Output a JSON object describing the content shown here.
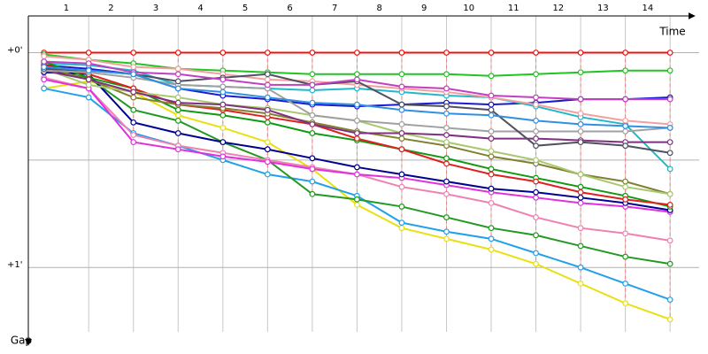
{
  "chart_data": {
    "type": "line",
    "x_label": "Time",
    "y_label": "Gap",
    "x": [
      0,
      1,
      2,
      3,
      4,
      5,
      6,
      7,
      8,
      9,
      10,
      11,
      12,
      13,
      14
    ],
    "xlim": [
      -0.35,
      14.65
    ],
    "xticks": [
      1,
      2,
      3,
      4,
      5,
      6,
      7,
      8,
      9,
      10,
      11,
      12,
      13,
      14
    ],
    "ylim": [
      -11,
      78
    ],
    "yticks": [
      {
        "value": 0,
        "label": "+0'"
      },
      {
        "value": 30,
        "label": null
      },
      {
        "value": 60,
        "label": "+1'"
      }
    ],
    "invert_y": true,
    "grid": true,
    "series": [
      {
        "color": "#ee1111",
        "values": [
          0,
          0,
          0,
          0,
          0,
          0,
          0,
          0,
          0,
          0,
          0,
          0,
          0,
          0,
          0
        ]
      },
      {
        "color": "#22c322",
        "values": [
          0.5,
          2,
          3,
          4.5,
          5,
          5.5,
          6,
          6,
          6,
          6,
          6.5,
          6,
          5.5,
          5,
          5
        ]
      },
      {
        "color": "#1a1ad0",
        "values": [
          3.5,
          4.5,
          6,
          10,
          12,
          13,
          14.5,
          15,
          14.5,
          14,
          14.5,
          14,
          13,
          13,
          12.5
        ]
      },
      {
        "color": "#22b8c8",
        "values": [
          3,
          3.5,
          5,
          9,
          9.5,
          10,
          10.5,
          10,
          11,
          12,
          12.5,
          15,
          18,
          20,
          32.5
        ]
      },
      {
        "color": "#e8e010",
        "values": [
          10,
          8,
          11,
          17.5,
          21,
          25,
          32.5,
          42.5,
          49,
          52,
          55,
          59,
          64.5,
          70,
          74.5
        ]
      },
      {
        "color": "#22a0e8",
        "values": [
          10,
          12.5,
          22.5,
          26,
          30,
          34,
          36,
          40,
          47.5,
          50,
          52,
          56,
          60,
          64.5,
          69
        ]
      },
      {
        "color": "#229922",
        "values": [
          5,
          7,
          16,
          19,
          25,
          30,
          39.5,
          41,
          43,
          46,
          49,
          51,
          54,
          57,
          59
        ]
      },
      {
        "color": "#f080b0",
        "values": [
          7,
          10,
          23,
          26,
          28,
          30,
          32,
          34,
          37.5,
          39.5,
          42,
          46,
          49,
          50.5,
          52.5
        ]
      },
      {
        "color": "#e030e0",
        "values": [
          7.5,
          10,
          25,
          27,
          29,
          30.5,
          32.5,
          34,
          35,
          37,
          39,
          40.5,
          42,
          43,
          44.5
        ]
      },
      {
        "color": "#000090",
        "values": [
          5.5,
          6,
          19.5,
          22.5,
          25,
          27,
          29.5,
          32,
          34,
          36,
          38,
          39,
          40.5,
          42,
          44
        ]
      },
      {
        "color": "#119911",
        "values": [
          2.5,
          7,
          10,
          16,
          17.5,
          19.5,
          22.5,
          24.5,
          27,
          29.5,
          32.5,
          35,
          37.5,
          40,
          43
        ]
      },
      {
        "color": "#e02020",
        "values": [
          3.5,
          6,
          10,
          14.5,
          16,
          18,
          20,
          24,
          27,
          31,
          34,
          36,
          39,
          41,
          42.5
        ]
      },
      {
        "color": "#808030",
        "values": [
          4,
          7.5,
          12.5,
          14.5,
          15.5,
          17,
          19.5,
          22,
          24,
          26,
          29,
          31,
          34,
          36,
          39.5
        ]
      },
      {
        "color": "#a8c870",
        "values": [
          4.5,
          9,
          11,
          12.5,
          14.5,
          15.5,
          17.5,
          19,
          22.5,
          25,
          27.5,
          30,
          34,
          37.5,
          39.5
        ]
      },
      {
        "color": "#803080",
        "values": [
          5,
          7.5,
          11,
          14,
          14.5,
          16,
          20,
          22.5,
          22.5,
          23,
          24,
          24,
          24.5,
          25,
          25
        ]
      },
      {
        "color": "#a0a0a0",
        "values": [
          5,
          5.5,
          7,
          9,
          9.5,
          10,
          17.5,
          19,
          20,
          21,
          22,
          22,
          22,
          22,
          21
        ]
      },
      {
        "color": "#f4a0a0",
        "values": [
          1,
          2,
          4,
          4.5,
          6,
          7.5,
          8,
          9,
          10,
          11,
          12.5,
          14.5,
          17,
          19,
          20
        ]
      },
      {
        "color": "#505060",
        "values": [
          4.5,
          5,
          6,
          8,
          7,
          6,
          9,
          8,
          14.5,
          15,
          16,
          26,
          25,
          26,
          28
        ]
      },
      {
        "color": "#c040c0",
        "values": [
          2.5,
          3,
          5.5,
          6,
          7.5,
          9,
          9,
          7.5,
          9.5,
          10,
          12,
          12.5,
          13,
          13,
          13
        ]
      },
      {
        "color": "#3090e0",
        "values": [
          4,
          5,
          6,
          10,
          11,
          12.5,
          14,
          14.5,
          16,
          17,
          17.5,
          19,
          20,
          20.5,
          21
        ]
      }
    ]
  }
}
